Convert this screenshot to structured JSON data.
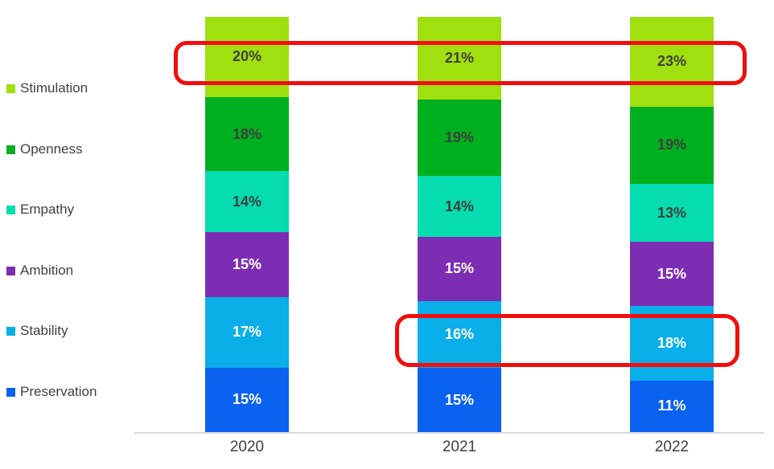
{
  "chart_data": {
    "type": "bar",
    "subtype": "stacked-column-100",
    "title": "",
    "xlabel": "",
    "ylabel": "",
    "unit": "%",
    "gridlines": false,
    "value_axis_visible": false,
    "legend_position": "left",
    "categories": [
      "2020",
      "2021",
      "2022"
    ],
    "series": [
      {
        "name": "Stimulation",
        "color": "#A0E00F",
        "label_color": "#3F3F3F",
        "values": [
          20,
          21,
          23
        ],
        "labels": [
          "20%",
          "21%",
          "23%"
        ]
      },
      {
        "name": "Openness",
        "color": "#00B01E",
        "label_color": "#3F3F3F",
        "values": [
          18,
          19,
          19
        ],
        "labels": [
          "18%",
          "19%",
          "19%"
        ]
      },
      {
        "name": "Empathy",
        "color": "#05DCAF",
        "label_color": "#3F3F3F",
        "values": [
          14,
          14,
          13
        ],
        "labels": [
          "14%",
          "14%",
          "13%"
        ]
      },
      {
        "name": "Ambition",
        "color": "#7D2DB4",
        "label_color": "#FFFFFF",
        "values": [
          15,
          15,
          15
        ],
        "labels": [
          "15%",
          "15%",
          "15%"
        ]
      },
      {
        "name": "Stability",
        "color": "#0AAEE9",
        "label_color": "#FFFFFF",
        "values": [
          17,
          16,
          18
        ],
        "labels": [
          "17%",
          "16%",
          "18%"
        ]
      },
      {
        "name": "Preservation",
        "color": "#0A62F1",
        "label_color": "#FFFFFF",
        "values": [
          15,
          15,
          11
        ],
        "labels": [
          "15%",
          "15%",
          "11%"
        ]
      }
    ],
    "annotations": [
      {
        "shape": "rounded-rect",
        "color": "#F10E0E",
        "highlights": "Stimulation values across all years: 20%, 21%, 23%"
      },
      {
        "shape": "rounded-rect",
        "color": "#F10E0E",
        "highlights": "Stability values for 2021 and 2022: 16%, 18%"
      }
    ]
  }
}
